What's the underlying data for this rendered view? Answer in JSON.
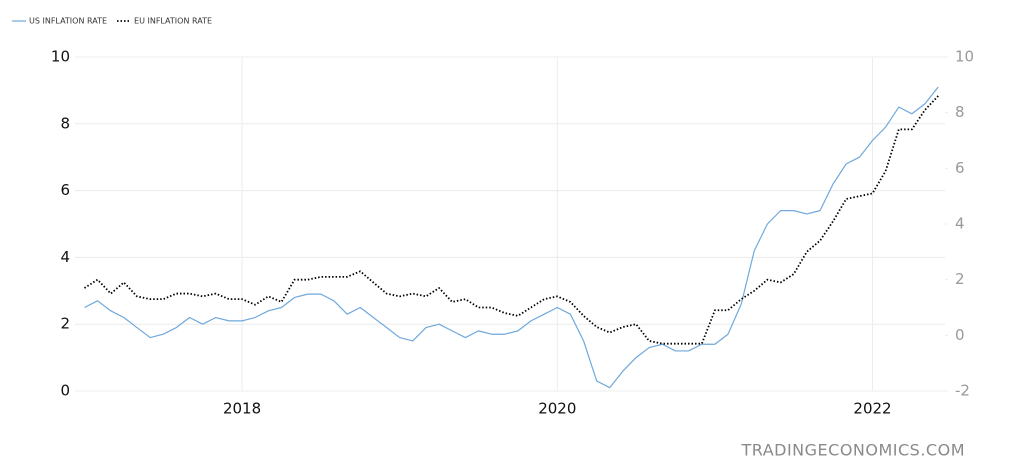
{
  "chart_data": {
    "type": "line",
    "x": [
      2017,
      2017.083,
      2017.167,
      2017.25,
      2017.333,
      2017.417,
      2017.5,
      2017.583,
      2017.667,
      2017.75,
      2017.833,
      2017.917,
      2018,
      2018.083,
      2018.167,
      2018.25,
      2018.333,
      2018.417,
      2018.5,
      2018.583,
      2018.667,
      2018.75,
      2018.833,
      2018.917,
      2019,
      2019.083,
      2019.167,
      2019.25,
      2019.333,
      2019.417,
      2019.5,
      2019.583,
      2019.667,
      2019.75,
      2019.833,
      2019.917,
      2020,
      2020.083,
      2020.167,
      2020.25,
      2020.333,
      2020.417,
      2020.5,
      2020.583,
      2020.667,
      2020.75,
      2020.833,
      2020.917,
      2021,
      2021.083,
      2021.167,
      2021.25,
      2021.333,
      2021.417,
      2021.5,
      2021.583,
      2021.667,
      2021.75,
      2021.833,
      2021.917,
      2022,
      2022.083,
      2022.167,
      2022.25,
      2022.333,
      2022.417
    ],
    "series": [
      {
        "name": "US INFLATION RATE",
        "color": "#6fa8dc",
        "axis": "y",
        "values": [
          2.5,
          2.7,
          2.4,
          2.2,
          1.9,
          1.6,
          1.7,
          1.9,
          2.2,
          2.0,
          2.2,
          2.1,
          2.1,
          2.2,
          2.4,
          2.5,
          2.8,
          2.9,
          2.9,
          2.7,
          2.3,
          2.5,
          2.2,
          1.9,
          1.6,
          1.5,
          1.9,
          2.0,
          1.8,
          1.6,
          1.8,
          1.7,
          1.7,
          1.8,
          2.1,
          2.3,
          2.5,
          2.3,
          1.5,
          0.3,
          0.1,
          0.6,
          1.0,
          1.3,
          1.4,
          1.2,
          1.2,
          1.4,
          1.4,
          1.7,
          2.6,
          4.2,
          5.0,
          5.4,
          5.4,
          5.3,
          5.4,
          6.2,
          6.8,
          7.0,
          7.5,
          7.9,
          8.5,
          8.3,
          8.6,
          9.1
        ]
      },
      {
        "name": "EU INFLATION RATE",
        "color": "#000000",
        "axis": "y2",
        "values": [
          1.7,
          2.0,
          1.5,
          1.9,
          1.4,
          1.3,
          1.3,
          1.5,
          1.5,
          1.4,
          1.5,
          1.3,
          1.3,
          1.1,
          1.4,
          1.2,
          2.0,
          2.0,
          2.1,
          2.1,
          2.1,
          2.3,
          1.9,
          1.5,
          1.4,
          1.5,
          1.4,
          1.7,
          1.2,
          1.3,
          1.0,
          1.0,
          0.8,
          0.7,
          1.0,
          1.3,
          1.4,
          1.2,
          0.7,
          0.3,
          0.1,
          0.3,
          0.4,
          -0.2,
          -0.3,
          -0.3,
          -0.3,
          -0.3,
          0.9,
          0.9,
          1.3,
          1.6,
          2.0,
          1.9,
          2.2,
          3.0,
          3.4,
          4.1,
          4.9,
          5.0,
          5.1,
          5.9,
          7.4,
          7.4,
          8.1,
          8.6
        ]
      }
    ],
    "xlim": [
      2016.94,
      2022.46
    ],
    "xticks": [
      2018,
      2020,
      2022
    ],
    "ylim": [
      0,
      10
    ],
    "yticks": [
      0,
      2,
      4,
      6,
      8,
      10
    ],
    "y2lim": [
      -2,
      10
    ],
    "y2ticks": [
      -2,
      0,
      2,
      4,
      6,
      8,
      10
    ],
    "grid": true,
    "legend": "top-left",
    "watermark": "TRADINGECONOMICS.COM"
  }
}
